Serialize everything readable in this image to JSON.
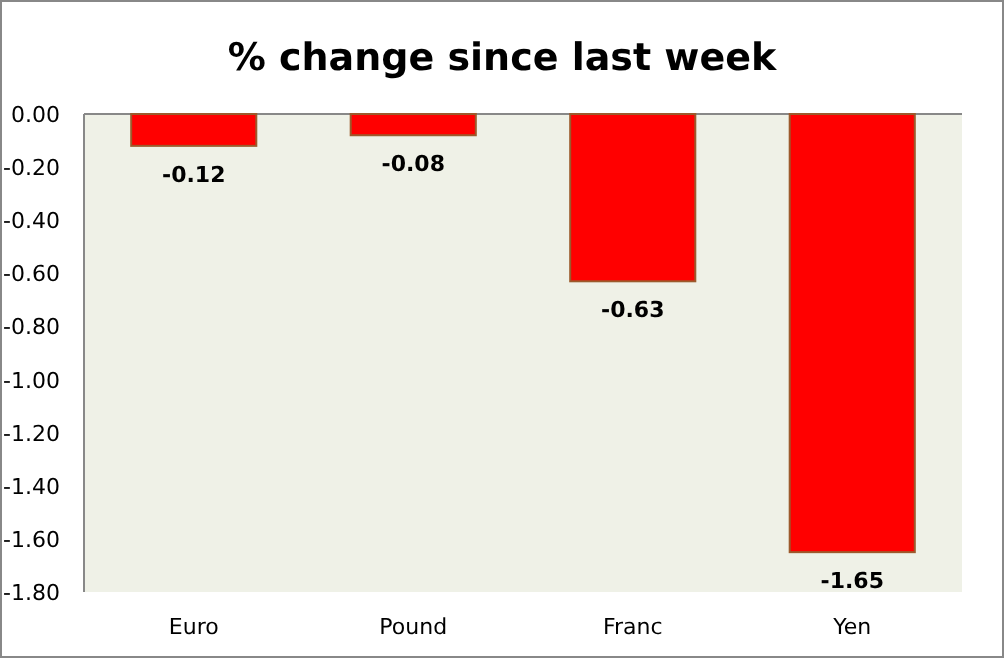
{
  "chart_data": {
    "type": "bar",
    "title": "% change since last week",
    "categories": [
      "Euro",
      "Pound",
      "Franc",
      "Yen"
    ],
    "values": [
      -0.12,
      -0.08,
      -0.63,
      -1.65
    ],
    "color": "#ff0000",
    "ylim": [
      -1.8,
      0
    ],
    "yticks": [
      {
        "value": 0,
        "label": "0.00"
      },
      {
        "value": -0.2,
        "label": "-0.20"
      },
      {
        "value": -0.4,
        "label": "-0.40"
      },
      {
        "value": -0.6,
        "label": "-0.60"
      },
      {
        "value": -0.8,
        "label": "-0.80"
      },
      {
        "value": -1,
        "label": "-1.00"
      },
      {
        "value": -1.2,
        "label": "-1.20"
      },
      {
        "value": -1.4,
        "label": "-1.40"
      },
      {
        "value": -1.6,
        "label": "-1.60"
      },
      {
        "value": -1.8,
        "label": "-1.80"
      }
    ],
    "data_labels": true,
    "grid": false
  }
}
